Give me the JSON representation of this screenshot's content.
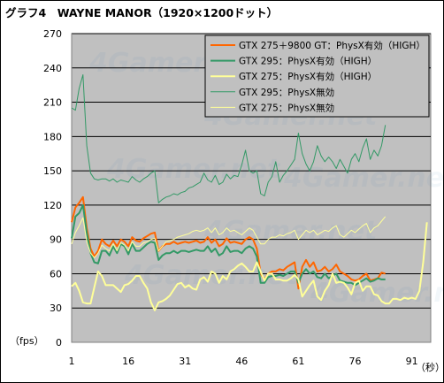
{
  "chart_data": {
    "type": "line",
    "title": "グラフ4　WAYNE MANOR（1920×1200ドット）",
    "ylabel": "（fps）",
    "xlabel": "（秒）",
    "xlim": [
      1,
      96
    ],
    "ylim": [
      0,
      270
    ],
    "yticks": [
      0,
      30,
      60,
      90,
      120,
      150,
      180,
      210,
      240,
      270
    ],
    "xticks": [
      1,
      16,
      31,
      46,
      61,
      76,
      91
    ],
    "grid": true,
    "legend_position": "top-right",
    "watermark": "4Gamer.net",
    "colors": {
      "plot_bg": "#c0c0c0",
      "grid": "#000000",
      "gtx275_9800gt_physx_high": "#ff6600",
      "gtx295_physx_high": "#339966",
      "gtx275_physx_high": "#ffff99",
      "gtx295_physx_off": "#339966",
      "gtx275_physx_off": "#ffff99"
    },
    "series": [
      {
        "name": "GTX 275＋9800 GT：PhysX有効（HIGH）",
        "color": "#ff6600",
        "width": 2,
        "x": [
          1,
          2,
          3,
          4,
          5,
          6,
          7,
          8,
          9,
          10,
          11,
          12,
          13,
          14,
          15,
          16,
          17,
          18,
          19,
          20,
          21,
          22,
          23,
          24,
          25,
          26,
          27,
          28,
          29,
          30,
          31,
          32,
          33,
          34,
          35,
          36,
          37,
          38,
          39,
          40,
          41,
          42,
          43,
          44,
          45,
          46,
          47,
          48,
          49,
          50,
          51,
          52,
          53,
          54,
          55,
          56,
          57,
          58,
          59,
          60,
          61,
          62,
          63,
          64,
          65,
          66,
          67,
          68,
          69,
          70,
          71,
          72,
          73,
          74,
          75,
          76,
          77,
          78,
          79,
          80,
          81,
          82,
          83,
          84
        ],
        "values": [
          105,
          118,
          122,
          127,
          100,
          82,
          75,
          80,
          90,
          86,
          84,
          89,
          84,
          90,
          88,
          84,
          92,
          89,
          88,
          91,
          93,
          95,
          96,
          80,
          84,
          86,
          86,
          88,
          86,
          87,
          88,
          87,
          88,
          89,
          87,
          88,
          92,
          87,
          90,
          84,
          86,
          91,
          87,
          88,
          87,
          86,
          90,
          92,
          90,
          82,
          60,
          55,
          60,
          62,
          62,
          64,
          63,
          66,
          68,
          70,
          47,
          66,
          72,
          66,
          70,
          62,
          63,
          66,
          62,
          64,
          68,
          62,
          60,
          58,
          55,
          54,
          55,
          58,
          60,
          54,
          55,
          56,
          61,
          60
        ]
      },
      {
        "name": "GTX 295：PhysX有効（HIGH）",
        "color": "#339966",
        "width": 2,
        "x": [
          1,
          2,
          3,
          4,
          5,
          6,
          7,
          8,
          9,
          10,
          11,
          12,
          13,
          14,
          15,
          16,
          17,
          18,
          19,
          20,
          21,
          22,
          23,
          24,
          25,
          26,
          27,
          28,
          29,
          30,
          31,
          32,
          33,
          34,
          35,
          36,
          37,
          38,
          39,
          40,
          41,
          42,
          43,
          44,
          45,
          46,
          47,
          48,
          49,
          50,
          51,
          52,
          53,
          54,
          55,
          56,
          57,
          58,
          59,
          60,
          61,
          62,
          63,
          64,
          65,
          66,
          67,
          68,
          69,
          70,
          71,
          72,
          73,
          74,
          75,
          76,
          77,
          78,
          79,
          80,
          81,
          82,
          83,
          84
        ],
        "values": [
          91,
          110,
          113,
          120,
          96,
          78,
          70,
          69,
          80,
          80,
          76,
          84,
          78,
          86,
          84,
          77,
          86,
          80,
          80,
          83,
          86,
          88,
          87,
          72,
          76,
          78,
          78,
          80,
          78,
          80,
          80,
          79,
          80,
          81,
          80,
          80,
          84,
          79,
          82,
          76,
          78,
          84,
          79,
          80,
          80,
          78,
          82,
          84,
          82,
          75,
          52,
          52,
          57,
          58,
          58,
          59,
          58,
          60,
          62,
          62,
          52,
          60,
          64,
          60,
          62,
          57,
          56,
          60,
          56,
          58,
          60,
          54,
          53,
          52,
          52,
          50,
          52,
          54,
          56,
          53,
          54,
          56,
          55,
          55
        ]
      },
      {
        "name": "GTX 275：PhysX有効（HIGH）",
        "color": "#ffff99",
        "width": 2,
        "x": [
          1,
          2,
          3,
          4,
          5,
          6,
          7,
          8,
          9,
          10,
          11,
          12,
          13,
          14,
          15,
          16,
          17,
          18,
          19,
          20,
          21,
          22,
          23,
          24,
          25,
          26,
          27,
          28,
          29,
          30,
          31,
          32,
          33,
          34,
          35,
          36,
          37,
          38,
          39,
          40,
          41,
          42,
          43,
          44,
          45,
          46,
          47,
          48,
          49,
          50,
          51,
          52,
          53,
          54,
          55,
          56,
          57,
          58,
          59,
          60,
          61,
          62,
          63,
          64,
          65,
          66,
          67,
          68,
          69,
          70,
          71,
          72,
          73,
          74,
          75,
          76,
          77,
          78,
          79,
          80,
          81,
          82,
          83,
          84,
          85,
          86,
          87,
          88,
          89,
          90,
          91,
          92,
          93,
          94,
          95
        ],
        "values": [
          49,
          52,
          45,
          35,
          34,
          34,
          48,
          62,
          58,
          50,
          50,
          50,
          47,
          44,
          50,
          51,
          54,
          58,
          58,
          52,
          47,
          35,
          28,
          35,
          36,
          38,
          41,
          46,
          51,
          52,
          48,
          50,
          47,
          46,
          55,
          57,
          53,
          62,
          60,
          52,
          58,
          55,
          62,
          64,
          67,
          69,
          66,
          62,
          62,
          70,
          62,
          54,
          60,
          60,
          55,
          55,
          54,
          54,
          56,
          59,
          55,
          40,
          45,
          50,
          54,
          40,
          37,
          45,
          50,
          60,
          52,
          53,
          52,
          48,
          42,
          52,
          54,
          45,
          49,
          49,
          42,
          41,
          36,
          34,
          34,
          38,
          38,
          37,
          39,
          38,
          39,
          38,
          45,
          70,
          105
        ]
      },
      {
        "name": "GTX 295：PhysX無効",
        "color": "#339966",
        "width": 1,
        "x": [
          1,
          2,
          3,
          4,
          5,
          6,
          7,
          8,
          9,
          10,
          11,
          12,
          13,
          14,
          15,
          16,
          17,
          18,
          19,
          20,
          21,
          22,
          23,
          24,
          25,
          26,
          27,
          28,
          29,
          30,
          31,
          32,
          33,
          34,
          35,
          36,
          37,
          38,
          39,
          40,
          41,
          42,
          43,
          44,
          45,
          46,
          47,
          48,
          49,
          50,
          51,
          52,
          53,
          54,
          55,
          56,
          57,
          58,
          59,
          60,
          61,
          62,
          63,
          64,
          65,
          66,
          67,
          68,
          69,
          70,
          71,
          72,
          73,
          74,
          75,
          76,
          77,
          78,
          79,
          80,
          81,
          82,
          83,
          84
        ],
        "values": [
          205,
          203,
          222,
          234,
          172,
          148,
          143,
          142,
          143,
          143,
          141,
          143,
          140,
          142,
          141,
          140,
          145,
          142,
          140,
          143,
          145,
          148,
          150,
          122,
          125,
          127,
          128,
          130,
          129,
          131,
          132,
          135,
          136,
          138,
          140,
          148,
          142,
          140,
          146,
          138,
          140,
          147,
          143,
          146,
          145,
          155,
          168,
          150,
          148,
          150,
          130,
          128,
          140,
          145,
          158,
          140,
          146,
          150,
          155,
          160,
          183,
          165,
          156,
          150,
          158,
          172,
          163,
          158,
          162,
          158,
          152,
          160,
          154,
          148,
          160,
          165,
          158,
          170,
          178,
          160,
          168,
          163,
          172,
          190
        ]
      },
      {
        "name": "GTX 275：PhysX無効",
        "color": "#ffff99",
        "width": 1,
        "x": [
          1,
          2,
          3,
          4,
          5,
          6,
          7,
          8,
          9,
          10,
          11,
          12,
          13,
          14,
          15,
          16,
          17,
          18,
          19,
          20,
          21,
          22,
          23,
          24,
          25,
          26,
          27,
          28,
          29,
          30,
          31,
          32,
          33,
          34,
          35,
          36,
          37,
          38,
          39,
          40,
          41,
          42,
          43,
          44,
          45,
          46,
          47,
          48,
          49,
          50,
          51,
          52,
          53,
          54,
          55,
          56,
          57,
          58,
          59,
          60,
          61,
          62,
          63,
          64,
          65,
          66,
          67,
          68,
          69,
          70,
          71,
          72,
          73,
          74,
          75,
          76,
          77,
          78,
          79,
          80,
          81,
          82,
          83,
          84
        ],
        "values": [
          86,
          96,
          102,
          109,
          88,
          78,
          74,
          78,
          85,
          82,
          80,
          86,
          80,
          87,
          85,
          80,
          88,
          84,
          84,
          87,
          88,
          90,
          91,
          80,
          84,
          88,
          89,
          90,
          92,
          93,
          94,
          95,
          97,
          98,
          97,
          98,
          100,
          96,
          100,
          94,
          96,
          100,
          97,
          98,
          96,
          94,
          97,
          100,
          98,
          92,
          86,
          86,
          90,
          92,
          92,
          94,
          93,
          95,
          96,
          98,
          90,
          94,
          98,
          96,
          98,
          94,
          96,
          98,
          97,
          100,
          102,
          94,
          92,
          95,
          98,
          96,
          99,
          102,
          104,
          96,
          100,
          102,
          106,
          110
        ]
      }
    ]
  }
}
